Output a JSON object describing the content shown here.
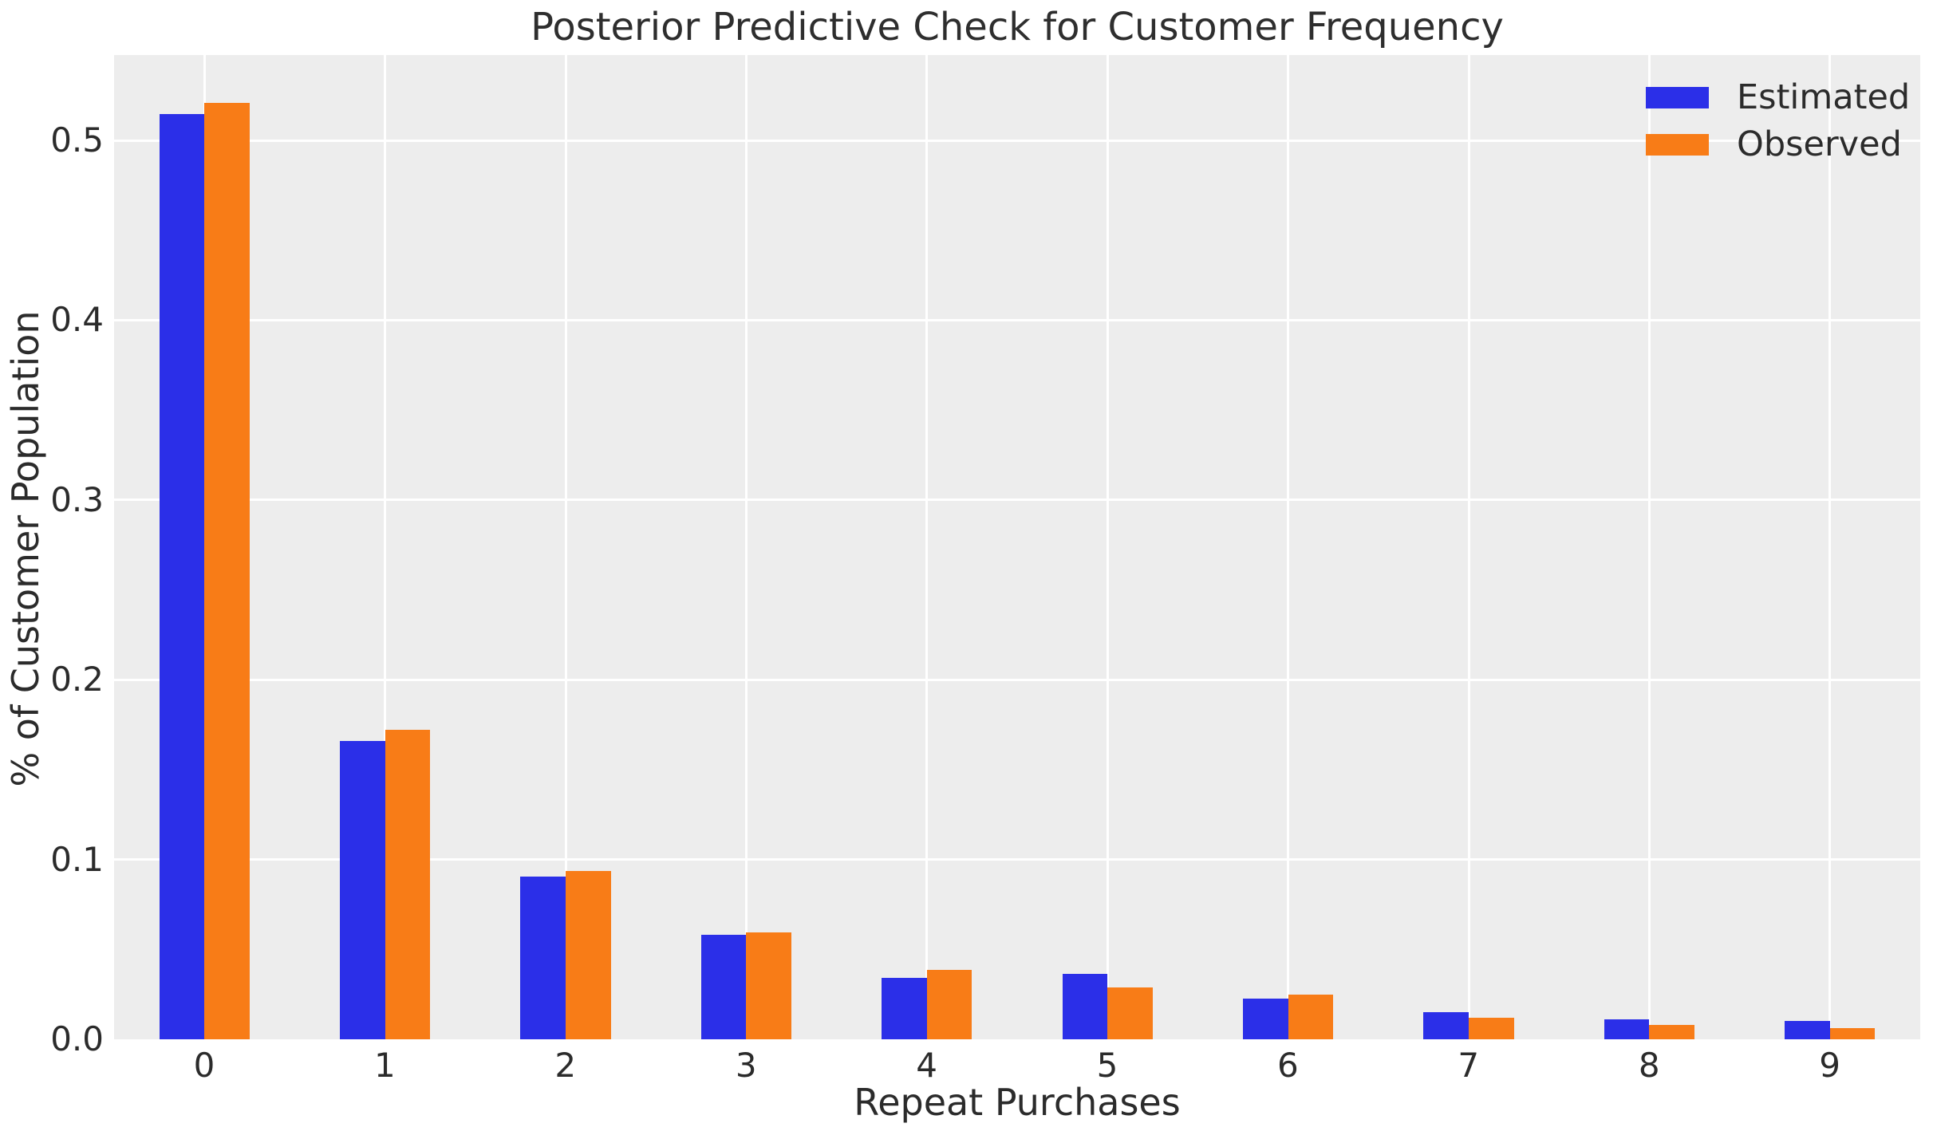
{
  "chart_data": {
    "type": "bar",
    "title": "Posterior Predictive Check for Customer Frequency",
    "xlabel": "Repeat Purchases",
    "ylabel": "% of Customer Population",
    "categories": [
      "0",
      "1",
      "2",
      "3",
      "4",
      "5",
      "6",
      "7",
      "8",
      "9"
    ],
    "series": [
      {
        "name": "Estimated",
        "color": "#2b2fe8",
        "values": [
          0.5145,
          0.166,
          0.0905,
          0.058,
          0.034,
          0.0365,
          0.0225,
          0.0152,
          0.011,
          0.0102
        ]
      },
      {
        "name": "Observed",
        "color": "#f87c17",
        "values": [
          0.521,
          0.172,
          0.0935,
          0.0595,
          0.0385,
          0.029,
          0.0247,
          0.012,
          0.008,
          0.0062
        ]
      }
    ],
    "ylim": [
      0,
      0.5475
    ],
    "yticks": [
      0.0,
      0.1,
      0.2,
      0.3,
      0.4,
      0.5
    ],
    "ytick_labels": [
      "0.0",
      "0.1",
      "0.2",
      "0.3",
      "0.4",
      "0.5"
    ],
    "grid": true,
    "legend_position": "upper right",
    "colors": {
      "plot_background": "#ededed",
      "figure_background": "#ffffff",
      "gridline": "#ffffff",
      "text": "#2b2b2b"
    }
  }
}
